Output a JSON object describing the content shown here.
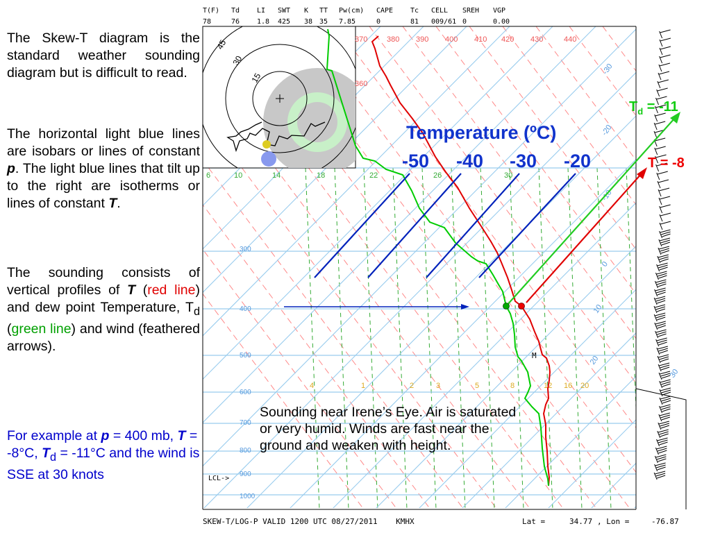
{
  "left_text": {
    "p1": "The Skew-T diagram is the standard weather sounding diagram but is difficult to read.",
    "p2_a": "The horizontal light blue lines are isobars or lines of constant ",
    "p2_p": "p",
    "p2_b": ". The light blue lines that tilt up to the right are isotherms or lines of constant ",
    "p2_t": "T",
    "p2_c": ".",
    "p3_a": "The sounding consists of vertical profiles of ",
    "p3_T": "T",
    "p3_b": " (",
    "p3_red": "red line",
    "p3_c": ") and dew point Temperature, T",
    "p3_sub": "d",
    "p3_d": " (",
    "p3_green": "green line",
    "p3_e": ") and wind (feathered arrows)."
  },
  "example": {
    "a": "For example at ",
    "p": "p",
    "b": " = 400 mb, ",
    "T": "T",
    "c": " = -8°C, ",
    "Td": "T",
    "sub": "d",
    "d": " = -11°C and the wind is SSE at 30 knots"
  },
  "header": {
    "labels": [
      "T(F)",
      "Td",
      "LI",
      "SWT",
      "K",
      "TT",
      "Pw(cm)",
      "CAPE",
      "Tc",
      "CELL",
      "SREH",
      "VGP"
    ],
    "values": [
      "78",
      "76",
      "1.8",
      "425",
      "38",
      "35",
      "7.85",
      "0",
      "81",
      "009/61",
      "0",
      "0.00"
    ]
  },
  "footer": {
    "left": "SKEW-T/LOG-P VALID 1200 UTC 08/27/2011    KMHX",
    "lat_label": "Lat =",
    "lat_value": "34.77",
    "lon_label": ", Lon =",
    "lon_value": "-76.87"
  },
  "pressure_labels": [
    "300",
    "400",
    "500",
    "600",
    "700",
    "800",
    "900",
    "1000"
  ],
  "lcl_label": "LCL->",
  "theta_labels": [
    "370",
    "380",
    "390",
    "400",
    "410",
    "420",
    "430",
    "440",
    "360"
  ],
  "mixing_top": [
    "6",
    "10",
    "14",
    "18",
    "22",
    "26",
    "30"
  ],
  "mixing_bottom": [
    "4",
    "1",
    "2",
    "3",
    "5",
    "8",
    "12",
    "16",
    "20"
  ],
  "isotherm_labels": [
    "-30",
    "-20",
    "-10",
    "0",
    "10",
    "20",
    "30"
  ],
  "hodograph_rings": [
    "15",
    "30",
    "45"
  ],
  "temp_heading": "Temperature (ºC)",
  "temp_values": [
    "-50",
    "-40",
    "-30",
    "-20"
  ],
  "td_label": {
    "main": "T",
    "sub": "d",
    "value": " = -11"
  },
  "t_label": "T = -8",
  "m_marker": "M",
  "annotation": "Sounding near Irene’s Eye. Air is saturated or very humid. Winds are fast near the ground and weaken with height.",
  "colors": {
    "temperature_line": "#e00000",
    "dewpoint_line": "#00cc00",
    "isobar": "#99ccee",
    "isotherm_label": "#5599dd",
    "dry_adiabat": "#ff8888",
    "mixing_ratio": "#33aa33",
    "annotation_blue": "#0022bb"
  }
}
